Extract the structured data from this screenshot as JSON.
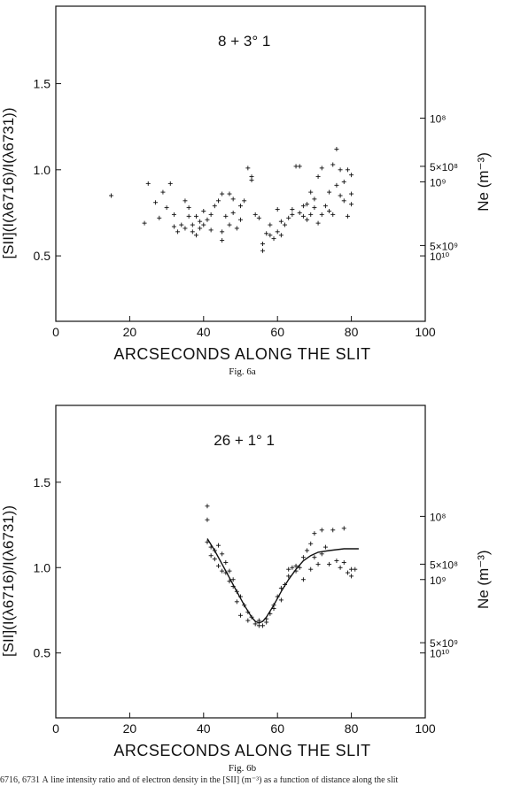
{
  "chart_data": [
    {
      "type": "scatter",
      "title": "8 + 3° 1",
      "caption": "Fig. 6a",
      "xlabel": "ARCSECONDS ALONG THE SLIT",
      "ylabel": "[SII](I(λ6716)/I(λ6731))",
      "y2label": "Ne (m⁻³)",
      "xlim": [
        0,
        100
      ],
      "ylim": [
        0.12,
        1.95
      ],
      "xticks": [
        0,
        20,
        40,
        60,
        80,
        100
      ],
      "yticks": [
        0.5,
        1.0,
        1.5
      ],
      "right_ticks": [
        {
          "label": "10⁸",
          "y": 1.3
        },
        {
          "label": "5×10⁸",
          "y": 1.02
        },
        {
          "label": "10⁹",
          "y": 0.93
        },
        {
          "label": "5×10⁹",
          "y": 0.56
        },
        {
          "label": "10¹⁰",
          "y": 0.5
        }
      ],
      "points": [
        [
          15,
          0.85
        ],
        [
          24,
          0.69
        ],
        [
          25,
          0.92
        ],
        [
          27,
          0.81
        ],
        [
          28,
          0.72
        ],
        [
          29,
          0.87
        ],
        [
          30,
          0.78
        ],
        [
          31,
          0.92
        ],
        [
          32,
          0.74
        ],
        [
          32,
          0.67
        ],
        [
          33,
          0.64
        ],
        [
          34,
          0.68
        ],
        [
          35,
          0.66
        ],
        [
          35,
          0.82
        ],
        [
          36,
          0.73
        ],
        [
          36,
          0.78
        ],
        [
          37,
          0.68
        ],
        [
          37,
          0.64
        ],
        [
          38,
          0.62
        ],
        [
          38,
          0.73
        ],
        [
          39,
          0.66
        ],
        [
          39,
          0.7
        ],
        [
          40,
          0.68
        ],
        [
          40,
          0.76
        ],
        [
          41,
          0.71
        ],
        [
          42,
          0.65
        ],
        [
          42,
          0.74
        ],
        [
          43,
          0.79
        ],
        [
          44,
          0.82
        ],
        [
          45,
          0.59
        ],
        [
          45,
          0.64
        ],
        [
          45,
          0.86
        ],
        [
          46,
          0.73
        ],
        [
          47,
          0.68
        ],
        [
          47,
          0.86
        ],
        [
          48,
          0.83
        ],
        [
          48,
          0.75
        ],
        [
          49,
          0.66
        ],
        [
          50,
          0.79
        ],
        [
          50,
          0.71
        ],
        [
          51,
          0.82
        ],
        [
          52,
          1.01
        ],
        [
          53,
          0.96
        ],
        [
          53,
          0.94
        ],
        [
          54,
          0.74
        ],
        [
          55,
          0.72
        ],
        [
          56,
          0.53
        ],
        [
          56,
          0.57
        ],
        [
          57,
          0.63
        ],
        [
          58,
          0.68
        ],
        [
          58,
          0.62
        ],
        [
          59,
          0.6
        ],
        [
          60,
          0.77
        ],
        [
          60,
          0.64
        ],
        [
          61,
          0.62
        ],
        [
          61,
          0.7
        ],
        [
          62,
          0.68
        ],
        [
          63,
          0.72
        ],
        [
          64,
          0.77
        ],
        [
          64,
          0.74
        ],
        [
          65,
          1.02
        ],
        [
          66,
          1.02
        ],
        [
          66,
          0.75
        ],
        [
          67,
          0.79
        ],
        [
          67,
          0.73
        ],
        [
          68,
          0.8
        ],
        [
          68,
          0.71
        ],
        [
          69,
          0.87
        ],
        [
          69,
          0.74
        ],
        [
          70,
          0.83
        ],
        [
          70,
          0.78
        ],
        [
          71,
          0.96
        ],
        [
          71,
          0.69
        ],
        [
          72,
          1.01
        ],
        [
          72,
          0.74
        ],
        [
          73,
          0.79
        ],
        [
          74,
          0.87
        ],
        [
          74,
          0.76
        ],
        [
          75,
          0.74
        ],
        [
          75,
          1.03
        ],
        [
          76,
          1.12
        ],
        [
          76,
          0.91
        ],
        [
          77,
          1.0
        ],
        [
          77,
          0.85
        ],
        [
          78,
          0.93
        ],
        [
          78,
          0.82
        ],
        [
          79,
          1.0
        ],
        [
          79,
          0.73
        ],
        [
          80,
          0.8
        ],
        [
          80,
          0.86
        ],
        [
          80,
          0.97
        ]
      ],
      "curve": []
    },
    {
      "type": "scatter",
      "title": "26 + 1° 1",
      "caption": "Fig. 6b",
      "xlabel": "ARCSECONDS ALONG THE SLIT",
      "ylabel": "[SII](I(λ6716)/I(λ6731))",
      "y2label": "Ne (m⁻³)",
      "xlim": [
        0,
        100
      ],
      "ylim": [
        0.12,
        1.95
      ],
      "xticks": [
        0,
        20,
        40,
        60,
        80,
        100
      ],
      "yticks": [
        0.5,
        1.0,
        1.5
      ],
      "right_ticks": [
        {
          "label": "10⁸",
          "y": 1.3
        },
        {
          "label": "5×10⁸",
          "y": 1.02
        },
        {
          "label": "10⁹",
          "y": 0.93
        },
        {
          "label": "5×10⁹",
          "y": 0.56
        },
        {
          "label": "10¹⁰",
          "y": 0.5
        }
      ],
      "points": [
        [
          41,
          1.36
        ],
        [
          41,
          1.28
        ],
        [
          41,
          1.15
        ],
        [
          42,
          1.07
        ],
        [
          42,
          1.12
        ],
        [
          43,
          1.05
        ],
        [
          43,
          1.1
        ],
        [
          44,
          1.13
        ],
        [
          44,
          1.01
        ],
        [
          45,
          0.98
        ],
        [
          45,
          1.08
        ],
        [
          46,
          0.97
        ],
        [
          46,
          1.03
        ],
        [
          47,
          0.92
        ],
        [
          47,
          0.98
        ],
        [
          48,
          0.89
        ],
        [
          48,
          0.93
        ],
        [
          49,
          0.86
        ],
        [
          49,
          0.8
        ],
        [
          50,
          0.83
        ],
        [
          50,
          0.72
        ],
        [
          51,
          0.78
        ],
        [
          52,
          0.74
        ],
        [
          52,
          0.69
        ],
        [
          53,
          0.71
        ],
        [
          54,
          0.67
        ],
        [
          55,
          0.66
        ],
        [
          55,
          0.69
        ],
        [
          56,
          0.66
        ],
        [
          57,
          0.7
        ],
        [
          57,
          0.68
        ],
        [
          58,
          0.73
        ],
        [
          59,
          0.78
        ],
        [
          59,
          0.76
        ],
        [
          60,
          0.83
        ],
        [
          61,
          0.81
        ],
        [
          61,
          0.88
        ],
        [
          62,
          0.9
        ],
        [
          63,
          0.95
        ],
        [
          63,
          0.99
        ],
        [
          64,
          1.0
        ],
        [
          65,
          0.98
        ],
        [
          65,
          1.01
        ],
        [
          66,
          1.0
        ],
        [
          67,
          0.93
        ],
        [
          67,
          1.06
        ],
        [
          68,
          1.1
        ],
        [
          69,
          1.14
        ],
        [
          69,
          0.99
        ],
        [
          70,
          1.06
        ],
        [
          70,
          1.2
        ],
        [
          71,
          1.02
        ],
        [
          72,
          1.22
        ],
        [
          72,
          1.08
        ],
        [
          73,
          1.12
        ],
        [
          74,
          1.02
        ],
        [
          75,
          1.22
        ],
        [
          76,
          1.04
        ],
        [
          77,
          1.0
        ],
        [
          78,
          1.23
        ],
        [
          78,
          1.03
        ],
        [
          79,
          0.97
        ],
        [
          80,
          0.99
        ],
        [
          80,
          0.95
        ],
        [
          81,
          0.99
        ]
      ],
      "curve": [
        [
          41,
          1.17
        ],
        [
          43,
          1.1
        ],
        [
          45,
          1.02
        ],
        [
          47,
          0.94
        ],
        [
          49,
          0.86
        ],
        [
          51,
          0.78
        ],
        [
          53,
          0.71
        ],
        [
          54,
          0.685
        ],
        [
          55,
          0.675
        ],
        [
          56,
          0.685
        ],
        [
          57,
          0.71
        ],
        [
          59,
          0.78
        ],
        [
          61,
          0.86
        ],
        [
          63,
          0.93
        ],
        [
          65,
          0.99
        ],
        [
          67,
          1.04
        ],
        [
          69,
          1.07
        ],
        [
          71,
          1.09
        ],
        [
          74,
          1.1
        ],
        [
          78,
          1.11
        ],
        [
          82,
          1.11
        ]
      ]
    }
  ],
  "bottom_text": "6716, 6731 Å line intensity ratio and of electron density in the [SII] (m⁻³) as a function of distance along the slit"
}
